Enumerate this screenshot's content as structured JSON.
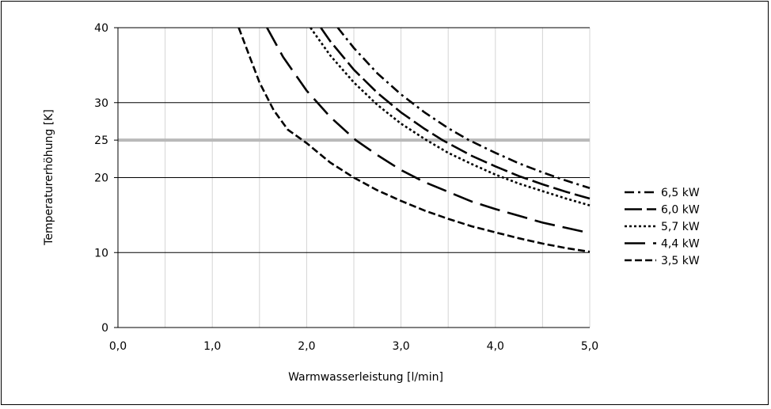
{
  "chart_data": {
    "type": "line",
    "xlabel": "Warmwasserleistung [l/min]",
    "ylabel": "Temperaturerhöhung [K]",
    "xlim": [
      0,
      5
    ],
    "ylim": [
      0,
      40
    ],
    "x_ticks": [
      "0,0",
      "1,0",
      "2,0",
      "3,0",
      "4,0",
      "5,0"
    ],
    "y_ticks": [
      "0",
      "10",
      "20",
      "25",
      "30",
      "40"
    ],
    "y_tick_values": [
      0,
      10,
      20,
      25,
      30,
      40
    ],
    "reference_line": {
      "y": 25,
      "color": "#b9b9b9"
    },
    "grid": true,
    "legend_position": "right",
    "series": [
      {
        "name": "6,5 kW",
        "dash": "12 5 3 5",
        "points": [
          [
            2.33,
            40
          ],
          [
            2.5,
            37.3
          ],
          [
            2.75,
            33.9
          ],
          [
            3.0,
            31.1
          ],
          [
            3.25,
            28.7
          ],
          [
            3.5,
            26.6
          ],
          [
            3.72,
            25.0
          ],
          [
            4.0,
            23.3
          ],
          [
            4.25,
            21.9
          ],
          [
            4.5,
            20.7
          ],
          [
            4.75,
            19.6
          ],
          [
            5.0,
            18.6
          ]
        ]
      },
      {
        "name": "6,0 kW",
        "dash": "22 6",
        "points": [
          [
            2.15,
            40
          ],
          [
            2.25,
            38.2
          ],
          [
            2.5,
            34.4
          ],
          [
            2.75,
            31.3
          ],
          [
            3.0,
            28.7
          ],
          [
            3.25,
            26.5
          ],
          [
            3.44,
            25.0
          ],
          [
            3.75,
            22.9
          ],
          [
            4.0,
            21.5
          ],
          [
            4.25,
            20.2
          ],
          [
            4.5,
            19.1
          ],
          [
            4.75,
            18.1
          ],
          [
            5.0,
            17.2
          ]
        ]
      },
      {
        "name": "5,7 kW",
        "dash": "3 3",
        "points": [
          [
            2.04,
            40
          ],
          [
            2.25,
            36.3
          ],
          [
            2.5,
            32.7
          ],
          [
            2.75,
            29.7
          ],
          [
            3.0,
            27.2
          ],
          [
            3.27,
            25.0
          ],
          [
            3.5,
            23.3
          ],
          [
            3.75,
            21.8
          ],
          [
            4.0,
            20.4
          ],
          [
            4.25,
            19.2
          ],
          [
            4.5,
            18.2
          ],
          [
            4.75,
            17.2
          ],
          [
            5.0,
            16.3
          ]
        ]
      },
      {
        "name": "4,4 kW",
        "dash": "26 10",
        "points": [
          [
            1.58,
            40
          ],
          [
            1.75,
            36.1
          ],
          [
            2.0,
            31.6
          ],
          [
            2.25,
            28.1
          ],
          [
            2.52,
            25.0
          ],
          [
            2.75,
            23.0
          ],
          [
            3.0,
            21.0
          ],
          [
            3.25,
            19.4
          ],
          [
            3.5,
            18.1
          ],
          [
            3.75,
            16.8
          ],
          [
            4.0,
            15.8
          ],
          [
            4.25,
            14.9
          ],
          [
            4.5,
            14.0
          ],
          [
            4.75,
            13.3
          ],
          [
            5.0,
            12.6
          ]
        ]
      },
      {
        "name": "3,5 kW",
        "dash": "9 4",
        "points": [
          [
            1.28,
            40
          ],
          [
            1.4,
            36.0
          ],
          [
            1.5,
            32.7
          ],
          [
            1.65,
            29.0
          ],
          [
            1.8,
            26.4
          ],
          [
            2.0,
            24.6
          ],
          [
            2.25,
            22.0
          ],
          [
            2.5,
            20.0
          ],
          [
            2.75,
            18.3
          ],
          [
            3.0,
            16.9
          ],
          [
            3.25,
            15.6
          ],
          [
            3.5,
            14.5
          ],
          [
            3.75,
            13.5
          ],
          [
            4.0,
            12.7
          ],
          [
            4.25,
            11.9
          ],
          [
            4.5,
            11.2
          ],
          [
            4.75,
            10.6
          ],
          [
            5.0,
            10.1
          ]
        ]
      }
    ]
  }
}
